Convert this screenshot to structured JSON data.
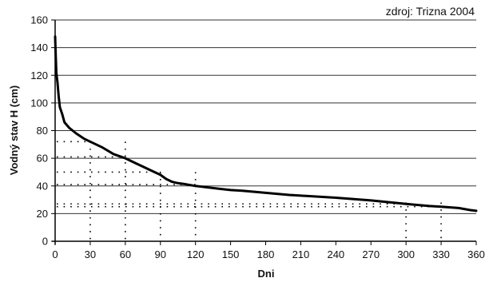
{
  "chart_data": {
    "type": "line",
    "title": "",
    "source_note": "zdroj: Trizna 2004",
    "xlabel": "Dni",
    "ylabel": "Vodný stav H (cm)",
    "xlim": [
      0,
      360
    ],
    "ylim": [
      0,
      160
    ],
    "x_ticks": [
      0,
      30,
      60,
      90,
      120,
      150,
      180,
      210,
      240,
      270,
      300,
      330,
      360
    ],
    "y_ticks": [
      0,
      20,
      40,
      60,
      80,
      100,
      120,
      140,
      160
    ],
    "grid": "horizontal",
    "legend": "none",
    "line_color": "#000000",
    "series": [
      {
        "x": [
          0,
          0.3,
          1,
          2,
          3,
          4,
          6,
          8,
          12,
          18,
          25,
          30,
          40,
          50,
          60,
          70,
          80,
          90,
          95,
          100,
          105,
          110,
          120,
          130,
          140,
          150,
          160,
          180,
          200,
          210,
          240,
          270,
          300,
          320,
          330,
          345,
          355,
          360
        ],
        "y": [
          148,
          140,
          122,
          115,
          105,
          97,
          92,
          86,
          82,
          78,
          74,
          72,
          68,
          63,
          60,
          56,
          52,
          48,
          45,
          43,
          42,
          41.5,
          40,
          39,
          38,
          37,
          36.5,
          35,
          33.5,
          33,
          31.5,
          29.5,
          27,
          25.5,
          25,
          24,
          22.5,
          22
        ]
      }
    ],
    "annotations": {
      "vertical_dotted_x": [
        30,
        60,
        90,
        120,
        300,
        330
      ],
      "horizontal_dotted": [
        {
          "y": 72,
          "x_end": 30
        },
        {
          "y": 61,
          "x_end": 60
        },
        {
          "y": 50,
          "x_end": 90
        },
        {
          "y": 41,
          "x_end": 120
        },
        {
          "y": 27,
          "x_end": 300
        },
        {
          "y": 25,
          "x_end": 330
        }
      ]
    }
  }
}
